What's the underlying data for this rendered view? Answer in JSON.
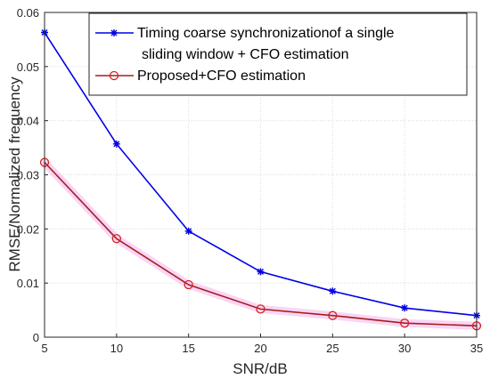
{
  "chart_data": {
    "type": "line",
    "x": [
      5,
      10,
      15,
      20,
      25,
      30,
      35
    ],
    "xlabel": "SNR/dB",
    "ylabel": "RMSE/Normalized frequency",
    "xlim": [
      5,
      35
    ],
    "ylim": [
      0,
      0.06
    ],
    "xticks": [
      5,
      10,
      15,
      20,
      25,
      30,
      35
    ],
    "yticks": [
      0,
      0.01,
      0.02,
      0.03,
      0.04,
      0.05,
      0.06
    ],
    "ytick_labels": [
      "0",
      "0.01",
      "0.02",
      "0.03",
      "0.04",
      "0.05",
      "0.06"
    ],
    "grid": true,
    "legend_position": "top-right",
    "series": [
      {
        "name_lines": [
          "Timing coarse synchronizationof a single",
          "sliding window + CFO estimation"
        ],
        "color": "#0000e6",
        "marker": "asterisk",
        "values": [
          0.0563,
          0.0357,
          0.0196,
          0.0121,
          0.0085,
          0.0054,
          0.004
        ]
      },
      {
        "name_lines": [
          "Proposed+CFO estimation"
        ],
        "color": "#d62020",
        "line_color": "#a0201a",
        "marker": "circle",
        "values": [
          0.0323,
          0.0182,
          0.0097,
          0.0052,
          0.004,
          0.0026,
          0.0021
        ]
      }
    ]
  }
}
